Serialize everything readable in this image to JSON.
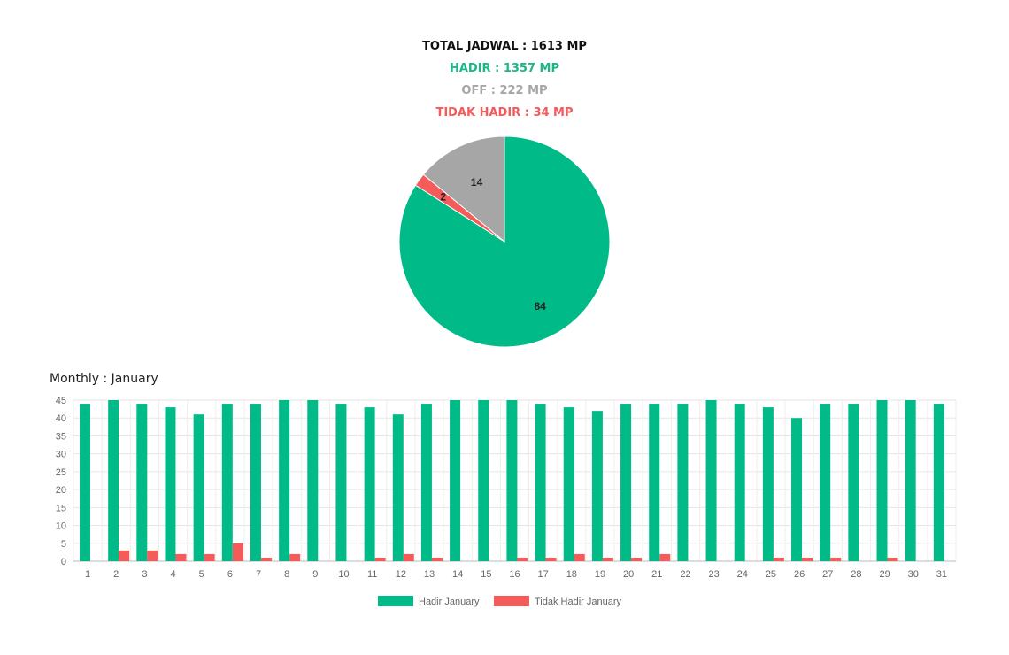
{
  "summary": {
    "total": "TOTAL JADWAL : 1613 MP",
    "hadir": "HADIR : 1357 MP",
    "off": "OFF : 222 MP",
    "tidak_hadir": "TIDAK HADIR : 34 MP"
  },
  "colors": {
    "hadir": "#00bb87",
    "tidak_hadir": "#f45b5b",
    "off": "#a6a6a6"
  },
  "chart_data": [
    {
      "type": "pie",
      "slices": [
        {
          "label": "Hadir",
          "value": 84,
          "color": "#00bb87"
        },
        {
          "label": "Tidak Hadir",
          "value": 2,
          "color": "#f45b5b"
        },
        {
          "label": "Off",
          "value": 14,
          "color": "#a6a6a6"
        }
      ]
    },
    {
      "type": "bar",
      "title": "Monthly : January",
      "categories": [
        "1",
        "2",
        "3",
        "4",
        "5",
        "6",
        "7",
        "8",
        "9",
        "10",
        "11",
        "12",
        "13",
        "14",
        "15",
        "16",
        "17",
        "18",
        "19",
        "20",
        "21",
        "22",
        "23",
        "24",
        "25",
        "26",
        "27",
        "28",
        "29",
        "30",
        "31"
      ],
      "ylim": [
        0,
        45
      ],
      "yticks": [
        0,
        5,
        10,
        15,
        20,
        25,
        30,
        35,
        40,
        45
      ],
      "grid": true,
      "legend": "bottom",
      "series": [
        {
          "name": "Hadir January",
          "color": "#00bb87",
          "values": [
            44,
            45,
            44,
            43,
            41,
            44,
            44,
            45,
            45,
            44,
            43,
            41,
            44,
            45,
            45,
            45,
            44,
            43,
            42,
            44,
            44,
            44,
            45,
            44,
            43,
            40,
            44,
            44,
            45,
            45,
            44
          ]
        },
        {
          "name": "Tidak Hadir January",
          "color": "#f45b5b",
          "values": [
            0,
            3,
            3,
            2,
            2,
            5,
            1,
            2,
            0,
            0,
            1,
            2,
            1,
            0,
            0,
            1,
            1,
            2,
            1,
            1,
            2,
            0,
            0,
            0,
            1,
            1,
            1,
            0,
            1,
            0,
            0
          ]
        }
      ]
    }
  ]
}
